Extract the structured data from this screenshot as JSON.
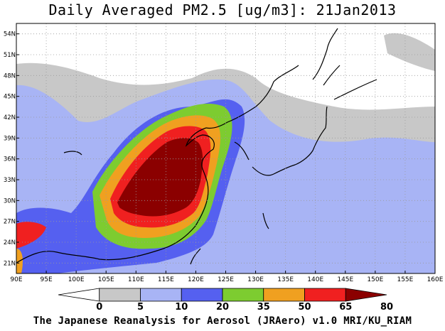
{
  "title": "Daily Averaged PM2.5 [ug/m3]: 21Jan2013",
  "credit": "The Japanese Reanalysis for Aerosol (JRAero) v1.0 MRI/KU_RIAM",
  "map": {
    "lon_range": [
      90,
      160
    ],
    "lat_range": [
      19.5,
      55.5
    ],
    "lon_ticks": [
      "90E",
      "95E",
      "100E",
      "105E",
      "110E",
      "115E",
      "120E",
      "125E",
      "130E",
      "135E",
      "140E",
      "145E",
      "150E",
      "155E",
      "160E"
    ],
    "lat_ticks": [
      "54N",
      "51N",
      "48N",
      "45N",
      "42N",
      "39N",
      "36N",
      "33N",
      "30N",
      "27N",
      "24N",
      "21N"
    ],
    "lat_tick_values": [
      54,
      51,
      48,
      45,
      42,
      39,
      36,
      33,
      30,
      27,
      24,
      21
    ]
  },
  "colorbar": {
    "levels": [
      "0",
      "5",
      "10",
      "20",
      "35",
      "50",
      "65",
      "80"
    ],
    "colors": [
      "#ffffff",
      "#c8c8c8",
      "#a8b4f5",
      "#5560f0",
      "#7dcc30",
      "#f0a020",
      "#f02020",
      "#8b0000"
    ]
  }
}
